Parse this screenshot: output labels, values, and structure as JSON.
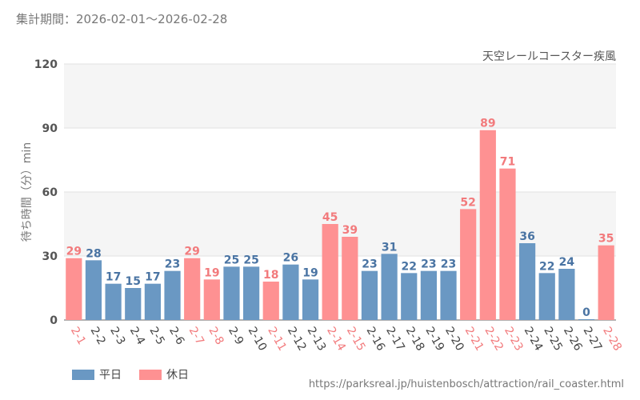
{
  "header": {
    "period": "集計期間：2026-02-01～2026-02-28"
  },
  "source": "https://parksreal.jp/huistenbosch/attraction/rail_coaster.html",
  "legend": {
    "weekday_label": "平日",
    "holiday_label": "休日"
  },
  "colors": {
    "weekday": "#6a98c3",
    "holiday": "#fe9192",
    "weekday_label": "#4a74a3",
    "holiday_label": "#f27a7c",
    "band": "#f5f5f5"
  },
  "chart_data": {
    "type": "bar",
    "title": "天空レールコースター疾風",
    "xlabel": "",
    "ylabel": "待ち時間（分）min",
    "ylim": [
      0,
      120
    ],
    "yticks": [
      0,
      30,
      60,
      90,
      120
    ],
    "series": [
      {
        "name": "待ち時間",
        "values": [
          29,
          28,
          17,
          15,
          17,
          23,
          29,
          19,
          25,
          25,
          18,
          26,
          19,
          45,
          39,
          23,
          31,
          22,
          23,
          23,
          52,
          89,
          71,
          36,
          22,
          24,
          0,
          35
        ]
      }
    ],
    "categories": [
      "2-1",
      "2-2",
      "2-3",
      "2-4",
      "2-5",
      "2-6",
      "2-7",
      "2-8",
      "2-9",
      "2-10",
      "2-11",
      "2-12",
      "2-13",
      "2-14",
      "2-15",
      "2-16",
      "2-17",
      "2-18",
      "2-19",
      "2-20",
      "2-21",
      "2-22",
      "2-23",
      "2-24",
      "2-25",
      "2-26",
      "2-27",
      "2-28"
    ],
    "day_type": [
      "holiday",
      "weekday",
      "weekday",
      "weekday",
      "weekday",
      "weekday",
      "holiday",
      "holiday",
      "weekday",
      "weekday",
      "holiday",
      "weekday",
      "weekday",
      "holiday",
      "holiday",
      "weekday",
      "weekday",
      "weekday",
      "weekday",
      "weekday",
      "holiday",
      "holiday",
      "holiday",
      "weekday",
      "weekday",
      "weekday",
      "weekday",
      "holiday"
    ]
  }
}
